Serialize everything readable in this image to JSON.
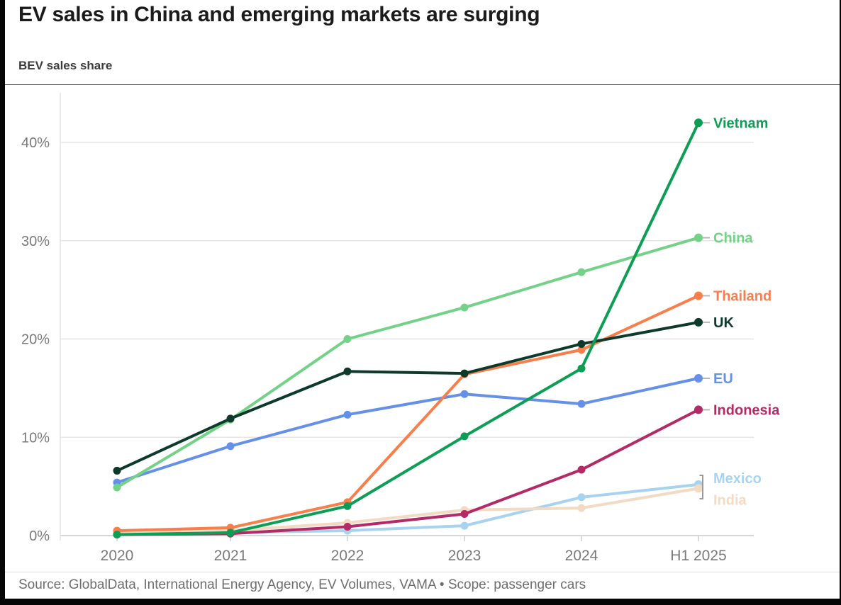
{
  "chart_data": {
    "type": "line",
    "title": "EV sales in China and emerging markets are surging",
    "subtitle": "BEV sales share",
    "x": [
      "2020",
      "2021",
      "2022",
      "2023",
      "2024",
      "H1 2025"
    ],
    "y_ticks": [
      {
        "value": 0,
        "label": "0%"
      },
      {
        "value": 10,
        "label": "10%"
      },
      {
        "value": 20,
        "label": "20%"
      },
      {
        "value": 30,
        "label": "30%"
      },
      {
        "value": 40,
        "label": "40%"
      }
    ],
    "ylim": [
      0,
      45
    ],
    "grid": "horizontal",
    "legend_position": "right-of-line-ends",
    "series": [
      {
        "name": "Vietnam",
        "color": "#0d9e55",
        "values": [
          0.1,
          0.3,
          3.0,
          10.1,
          17.0,
          42.0
        ]
      },
      {
        "name": "China",
        "color": "#73d287",
        "values": [
          4.9,
          11.8,
          20.0,
          23.2,
          26.8,
          30.3
        ]
      },
      {
        "name": "Thailand",
        "color": "#f97e4b",
        "values": [
          0.5,
          0.8,
          3.4,
          16.4,
          18.9,
          24.4
        ]
      },
      {
        "name": "UK",
        "color": "#0e3a2b",
        "values": [
          6.6,
          11.9,
          16.7,
          16.5,
          19.5,
          21.7
        ]
      },
      {
        "name": "EU",
        "color": "#6590e8",
        "values": [
          5.4,
          9.1,
          12.3,
          14.4,
          13.4,
          16.0
        ]
      },
      {
        "name": "Indonesia",
        "color": "#b42a67",
        "values": [
          0.1,
          0.2,
          0.9,
          2.2,
          6.7,
          12.8
        ]
      },
      {
        "name": "Mexico",
        "color": "#a8d3f0",
        "values": [
          0.2,
          0.3,
          0.5,
          1.0,
          3.9,
          5.2
        ]
      },
      {
        "name": "India",
        "color": "#f2dac3",
        "values": [
          0.4,
          0.5,
          1.3,
          2.6,
          2.8,
          4.8
        ]
      }
    ],
    "source": "Source: GlobalData, International Energy Agency, EV Volumes, VAMA • Scope: passenger cars"
  }
}
